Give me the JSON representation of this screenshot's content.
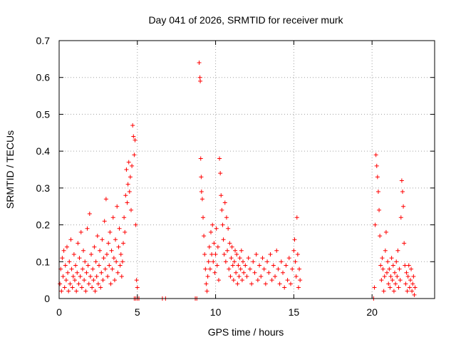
{
  "chart_data": {
    "type": "scatter",
    "title": "Day 041 of 2026, SRMTID for receiver murk",
    "xlabel": "GPS time / hours",
    "ylabel": "SRMTID / TECUs",
    "xlim": [
      0,
      24
    ],
    "ylim": [
      0,
      0.7
    ],
    "xticks": [
      0,
      5,
      10,
      15,
      20
    ],
    "yticks": [
      0,
      0.1,
      0.2,
      0.3,
      0.4,
      0.5,
      0.6,
      0.7
    ],
    "grid": true,
    "marker": "+",
    "marker_color": "#ff0000",
    "series": [
      {
        "name": "SRMTID",
        "points": [
          [
            0.05,
            0.04
          ],
          [
            0.1,
            0.08
          ],
          [
            0.15,
            0.02
          ],
          [
            0.2,
            0.11
          ],
          [
            0.25,
            0.06
          ],
          [
            0.3,
            0.13
          ],
          [
            0.35,
            0.03
          ],
          [
            0.4,
            0.09
          ],
          [
            0.45,
            0.05
          ],
          [
            0.5,
            0.14
          ],
          [
            0.55,
            0.07
          ],
          [
            0.6,
            0.02
          ],
          [
            0.65,
            0.1
          ],
          [
            0.7,
            0.04
          ],
          [
            0.75,
            0.16
          ],
          [
            0.8,
            0.08
          ],
          [
            0.85,
            0.03
          ],
          [
            0.9,
            0.06
          ],
          [
            0.95,
            0.12
          ],
          [
            1.0,
            0.05
          ],
          [
            1.05,
            0.09
          ],
          [
            1.1,
            0.02
          ],
          [
            1.15,
            0.07
          ],
          [
            1.2,
            0.15
          ],
          [
            1.25,
            0.04
          ],
          [
            1.3,
            0.11
          ],
          [
            1.35,
            0.06
          ],
          [
            1.4,
            0.18
          ],
          [
            1.45,
            0.03
          ],
          [
            1.5,
            0.08
          ],
          [
            1.55,
            0.13
          ],
          [
            1.6,
            0.05
          ],
          [
            1.65,
            0.1
          ],
          [
            1.7,
            0.02
          ],
          [
            1.75,
            0.07
          ],
          [
            1.8,
            0.19
          ],
          [
            1.85,
            0.09
          ],
          [
            1.9,
            0.04
          ],
          [
            1.95,
            0.23
          ],
          [
            2.0,
            0.06
          ],
          [
            2.05,
            0.12
          ],
          [
            2.1,
            0.03
          ],
          [
            2.15,
            0.08
          ],
          [
            2.2,
            0.05
          ],
          [
            2.25,
            0.14
          ],
          [
            2.3,
            0.02
          ],
          [
            2.35,
            0.1
          ],
          [
            2.4,
            0.06
          ],
          [
            2.45,
            0.17
          ],
          [
            2.5,
            0.04
          ],
          [
            2.55,
            0.09
          ],
          [
            2.6,
            0.13
          ],
          [
            2.65,
            0.03
          ],
          [
            2.7,
            0.07
          ],
          [
            2.75,
            0.16
          ],
          [
            2.8,
            0.05
          ],
          [
            2.85,
            0.11
          ],
          [
            2.9,
            0.21
          ],
          [
            2.95,
            0.08
          ],
          [
            3.0,
            0.27
          ],
          [
            3.05,
            0.12
          ],
          [
            3.1,
            0.06
          ],
          [
            3.15,
            0.15
          ],
          [
            3.2,
            0.09
          ],
          [
            3.25,
            0.18
          ],
          [
            3.3,
            0.04
          ],
          [
            3.35,
            0.13
          ],
          [
            3.4,
            0.08
          ],
          [
            3.45,
            0.22
          ],
          [
            3.5,
            0.11
          ],
          [
            3.55,
            0.05
          ],
          [
            3.6,
            0.16
          ],
          [
            3.65,
            0.1
          ],
          [
            3.7,
            0.25
          ],
          [
            3.75,
            0.07
          ],
          [
            3.8,
            0.14
          ],
          [
            3.85,
            0.19
          ],
          [
            3.9,
            0.09
          ],
          [
            3.95,
            0.12
          ],
          [
            4.0,
            0.06
          ],
          [
            4.05,
            0.1
          ],
          [
            4.1,
            0.15
          ],
          [
            4.15,
            0.22
          ],
          [
            4.2,
            0.18
          ],
          [
            4.25,
            0.28
          ],
          [
            4.3,
            0.35
          ],
          [
            4.35,
            0.26
          ],
          [
            4.4,
            0.31
          ],
          [
            4.45,
            0.37
          ],
          [
            4.5,
            0.29
          ],
          [
            4.55,
            0.33
          ],
          [
            4.6,
            0.24
          ],
          [
            4.65,
            0.36
          ],
          [
            4.7,
            0.47
          ],
          [
            4.75,
            0.44
          ],
          [
            4.8,
            0.39
          ],
          [
            4.85,
            0.43
          ],
          [
            4.9,
            0.2
          ],
          [
            4.95,
            0.05
          ],
          [
            5.0,
            0.03
          ],
          [
            4.8,
            0.0
          ],
          [
            4.9,
            0.0
          ],
          [
            5.0,
            0.0
          ],
          [
            5.1,
            0.0
          ],
          [
            6.6,
            0.0
          ],
          [
            6.8,
            0.0
          ],
          [
            8.7,
            0.0
          ],
          [
            8.8,
            0.0
          ],
          [
            8.95,
            0.64
          ],
          [
            9.0,
            0.6
          ],
          [
            9.02,
            0.59
          ],
          [
            9.05,
            0.38
          ],
          [
            9.08,
            0.33
          ],
          [
            9.1,
            0.29
          ],
          [
            9.15,
            0.27
          ],
          [
            9.2,
            0.22
          ],
          [
            9.25,
            0.17
          ],
          [
            9.3,
            0.12
          ],
          [
            9.35,
            0.08
          ],
          [
            9.4,
            0.04
          ],
          [
            9.45,
            0.02
          ],
          [
            9.5,
            0.06
          ],
          [
            9.55,
            0.1
          ],
          [
            9.6,
            0.14
          ],
          [
            9.65,
            0.08
          ],
          [
            9.7,
            0.18
          ],
          [
            9.75,
            0.12
          ],
          [
            9.8,
            0.2
          ],
          [
            9.85,
            0.1
          ],
          [
            9.9,
            0.15
          ],
          [
            9.95,
            0.07
          ],
          [
            10.0,
            0.12
          ],
          [
            10.05,
            0.19
          ],
          [
            10.1,
            0.09
          ],
          [
            10.15,
            0.14
          ],
          [
            10.2,
            0.05
          ],
          [
            10.25,
            0.38
          ],
          [
            10.3,
            0.34
          ],
          [
            10.35,
            0.28
          ],
          [
            10.4,
            0.24
          ],
          [
            10.45,
            0.2
          ],
          [
            10.5,
            0.16
          ],
          [
            10.55,
            0.12
          ],
          [
            10.6,
            0.26
          ],
          [
            10.65,
            0.1
          ],
          [
            10.7,
            0.22
          ],
          [
            10.75,
            0.13
          ],
          [
            10.8,
            0.19
          ],
          [
            10.85,
            0.08
          ],
          [
            10.9,
            0.15
          ],
          [
            10.95,
            0.06
          ],
          [
            11.0,
            0.11
          ],
          [
            11.05,
            0.14
          ],
          [
            11.1,
            0.09
          ],
          [
            11.15,
            0.05
          ],
          [
            11.2,
            0.1
          ],
          [
            11.25,
            0.13
          ],
          [
            11.3,
            0.07
          ],
          [
            11.35,
            0.12
          ],
          [
            11.4,
            0.04
          ],
          [
            11.45,
            0.09
          ],
          [
            11.5,
            0.06
          ],
          [
            11.55,
            0.11
          ],
          [
            11.6,
            0.08
          ],
          [
            11.65,
            0.13
          ],
          [
            11.7,
            0.05
          ],
          [
            11.75,
            0.1
          ],
          [
            11.8,
            0.07
          ],
          [
            11.9,
            0.09
          ],
          [
            12.0,
            0.06
          ],
          [
            12.1,
            0.11
          ],
          [
            12.2,
            0.08
          ],
          [
            12.3,
            0.04
          ],
          [
            12.4,
            0.1
          ],
          [
            12.5,
            0.07
          ],
          [
            12.6,
            0.12
          ],
          [
            12.7,
            0.05
          ],
          [
            12.8,
            0.09
          ],
          [
            12.9,
            0.06
          ],
          [
            13.0,
            0.11
          ],
          [
            13.1,
            0.08
          ],
          [
            13.2,
            0.04
          ],
          [
            13.3,
            0.1
          ],
          [
            13.4,
            0.07
          ],
          [
            13.5,
            0.12
          ],
          [
            13.6,
            0.05
          ],
          [
            13.7,
            0.09
          ],
          [
            13.8,
            0.06
          ],
          [
            13.9,
            0.13
          ],
          [
            14.0,
            0.08
          ],
          [
            14.1,
            0.04
          ],
          [
            14.2,
            0.1
          ],
          [
            14.3,
            0.07
          ],
          [
            14.4,
            0.03
          ],
          [
            14.5,
            0.09
          ],
          [
            14.6,
            0.05
          ],
          [
            14.7,
            0.11
          ],
          [
            14.8,
            0.04
          ],
          [
            14.9,
            0.08
          ],
          [
            15.0,
            0.13
          ],
          [
            15.05,
            0.16
          ],
          [
            15.1,
            0.1
          ],
          [
            15.15,
            0.06
          ],
          [
            15.2,
            0.22
          ],
          [
            15.25,
            0.12
          ],
          [
            15.3,
            0.03
          ],
          [
            15.35,
            0.08
          ],
          [
            15.4,
            0.05
          ],
          [
            20.1,
            0.0
          ],
          [
            20.15,
            0.03
          ],
          [
            20.2,
            0.2
          ],
          [
            20.25,
            0.39
          ],
          [
            20.3,
            0.36
          ],
          [
            20.35,
            0.33
          ],
          [
            20.4,
            0.29
          ],
          [
            20.45,
            0.24
          ],
          [
            20.5,
            0.17
          ],
          [
            20.55,
            0.09
          ],
          [
            20.6,
            0.05
          ],
          [
            20.65,
            0.11
          ],
          [
            20.7,
            0.08
          ],
          [
            20.75,
            0.02
          ],
          [
            20.8,
            0.06
          ],
          [
            20.85,
            0.13
          ],
          [
            20.9,
            0.18
          ],
          [
            20.95,
            0.07
          ],
          [
            21.0,
            0.1
          ],
          [
            21.05,
            0.04
          ],
          [
            21.1,
            0.08
          ],
          [
            21.15,
            0.03
          ],
          [
            21.2,
            0.06
          ],
          [
            21.25,
            0.11
          ],
          [
            21.3,
            0.05
          ],
          [
            21.35,
            0.09
          ],
          [
            21.4,
            0.02
          ],
          [
            21.45,
            0.07
          ],
          [
            21.5,
            0.04
          ],
          [
            21.55,
            0.1
          ],
          [
            21.6,
            0.06
          ],
          [
            21.65,
            0.13
          ],
          [
            21.7,
            0.03
          ],
          [
            21.75,
            0.08
          ],
          [
            21.8,
            0.05
          ],
          [
            21.85,
            0.22
          ],
          [
            21.9,
            0.32
          ],
          [
            21.95,
            0.29
          ],
          [
            22.0,
            0.25
          ],
          [
            22.05,
            0.15
          ],
          [
            22.1,
            0.09
          ],
          [
            22.15,
            0.04
          ],
          [
            22.2,
            0.07
          ],
          [
            22.25,
            0.02
          ],
          [
            22.3,
            0.06
          ],
          [
            22.35,
            0.09
          ],
          [
            22.4,
            0.03
          ],
          [
            22.45,
            0.05
          ],
          [
            22.5,
            0.08
          ],
          [
            22.55,
            0.02
          ],
          [
            22.6,
            0.04
          ],
          [
            22.65,
            0.06
          ],
          [
            22.7,
            0.01
          ],
          [
            22.75,
            0.03
          ]
        ]
      }
    ]
  }
}
